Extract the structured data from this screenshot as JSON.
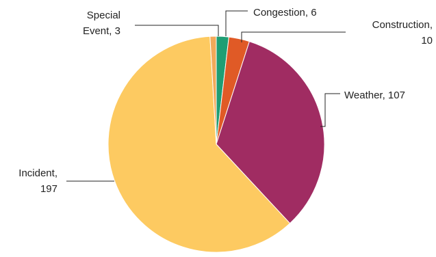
{
  "chart_data": {
    "type": "pie",
    "title": "",
    "start_angle_deg": 0,
    "direction": "clockwise",
    "slices": [
      {
        "label": "Congestion",
        "value": 6,
        "color": "#1f9e74",
        "label_lines": [
          "Congestion, 6"
        ]
      },
      {
        "label": "Construction",
        "value": 10,
        "color": "#e05a26",
        "label_lines": [
          "Construction,",
          "10"
        ]
      },
      {
        "label": "Weather",
        "value": 107,
        "color": "#a02c62",
        "label_lines": [
          "Weather, 107"
        ]
      },
      {
        "label": "Incident",
        "value": 197,
        "color": "#fdca61",
        "label_lines": [
          "Incident,",
          "197"
        ]
      },
      {
        "label": "Special Event",
        "value": 3,
        "color": "#f3a95a",
        "label_lines": [
          "Special",
          "Event, 3"
        ]
      }
    ]
  }
}
